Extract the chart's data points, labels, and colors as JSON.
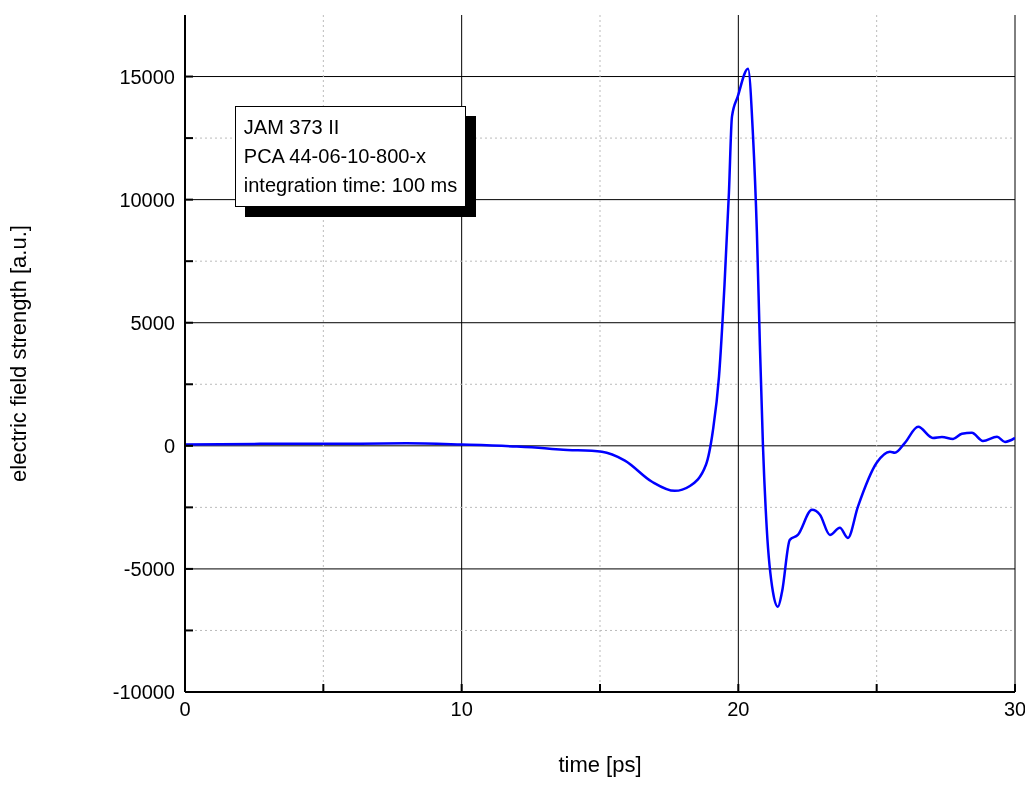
{
  "chart_data": {
    "type": "line",
    "xlabel": "time [ps]",
    "ylabel": "electric field strength [a.u.]",
    "annotations": [
      "JAM 373 II",
      "PCA 44-06-10-800-x",
      "integration time: 100 ms"
    ],
    "x": [
      0,
      3,
      5,
      8,
      10,
      12,
      13,
      13.55,
      15.07,
      15.9,
      16.88,
      17.7,
      18.25,
      18.83,
      19.08,
      19.3,
      19.5,
      19.66,
      19.77,
      19.98,
      20.35,
      20.53,
      20.67,
      20.78,
      20.89,
      21.03,
      21.25,
      21.43,
      21.58,
      21.86,
      22.15,
      22.66,
      22.95,
      23.31,
      23.67,
      23.96,
      24.32,
      25.0,
      25.48,
      25.66,
      26.02,
      26.5,
      27.03,
      27.36,
      27.76,
      28.08,
      28.44,
      28.84,
      29.35,
      29.64,
      30
    ],
    "series": [
      {
        "color": "#0000ff",
        "values": [
          50,
          80,
          80,
          100,
          50,
          -30,
          -100,
          -150,
          -240,
          -600,
          -1460,
          -1830,
          -1630,
          -770,
          610,
          2800,
          6540,
          10280,
          13370,
          14190,
          15320,
          12600,
          8700,
          4070,
          0,
          -3410,
          -5930,
          -6540,
          -5930,
          -3820,
          -3620,
          -2600,
          -2800,
          -3620,
          -3330,
          -3740,
          -2480,
          -690,
          -240,
          -280,
          120,
          770,
          320,
          360,
          280,
          490,
          530,
          200,
          370,
          160,
          320
        ]
      }
    ],
    "xlim": [
      0,
      30
    ],
    "xticks": [
      0,
      {
        "value": 5,
        "label": null
      },
      10,
      {
        "value": 15,
        "label": null
      },
      20,
      {
        "value": 25,
        "label": null
      },
      30
    ],
    "ylim": [
      -10000,
      17500
    ],
    "yticks": [
      -10000,
      {
        "value": -7500,
        "label": null
      },
      -5000,
      {
        "value": -2500,
        "label": null
      },
      0,
      {
        "value": 2500,
        "label": null
      },
      5000,
      {
        "value": 7500,
        "label": null
      },
      10000,
      {
        "value": 12500,
        "label": null
      },
      15000
    ],
    "grid": true,
    "marker": "none",
    "line_style": "solid"
  }
}
